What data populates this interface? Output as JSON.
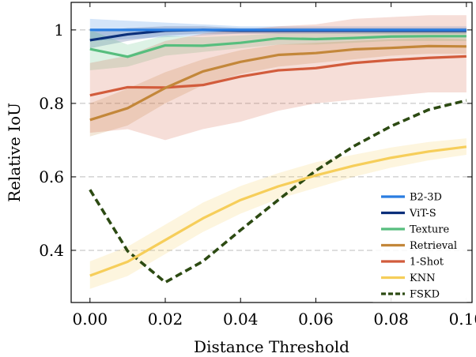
{
  "chart_data": {
    "type": "line",
    "title": "",
    "xlabel": "Distance Threshold",
    "ylabel": "Relative IoU",
    "xlim": [
      -0.005,
      0.1015
    ],
    "ylim": [
      0.258,
      1.075
    ],
    "xticks": [
      0,
      0.02,
      0.04,
      0.06,
      0.08,
      0.1
    ],
    "xtick_labels": [
      "0.00",
      "0.02",
      "0.04",
      "0.06",
      "0.08",
      "0.10"
    ],
    "yticks": [
      0.4,
      0.6,
      0.8,
      1.0
    ],
    "ytick_labels": [
      "0.4",
      "0.6",
      "0.8",
      "1"
    ],
    "grid": "horizontal dashed",
    "legend_position": "lower-right",
    "x": [
      0,
      0.01,
      0.02,
      0.03,
      0.04,
      0.05,
      0.06,
      0.07,
      0.08,
      0.09,
      0.1
    ],
    "series": [
      {
        "name": "B2-3D",
        "color": "#2a7de1",
        "dashed": false,
        "values": [
          1.0,
          1.0,
          1.0,
          1.0,
          1.0,
          1.0,
          1.0,
          1.0,
          1.0,
          1.0,
          1.0
        ],
        "band_low": [
          0.97,
          0.975,
          0.98,
          0.985,
          0.99,
          0.99,
          0.99,
          0.99,
          0.99,
          0.99,
          0.99
        ],
        "band_high": [
          1.03,
          1.025,
          1.02,
          1.015,
          1.01,
          1.01,
          1.01,
          1.01,
          1.01,
          1.01,
          1.01
        ]
      },
      {
        "name": "ViT-S",
        "color": "#0b2f7a",
        "dashed": false,
        "values": [
          0.972,
          0.988,
          0.998,
          1.0,
          0.998,
          0.998,
          0.998,
          0.998,
          0.998,
          0.998,
          0.998
        ],
        "band_low": [
          0.95,
          0.97,
          0.985,
          0.99,
          0.99,
          0.99,
          0.99,
          0.99,
          0.99,
          0.99,
          0.99
        ],
        "band_high": [
          0.995,
          1.005,
          1.01,
          1.01,
          1.005,
          1.005,
          1.005,
          1.005,
          1.005,
          1.005,
          1.005
        ]
      },
      {
        "name": "Texture",
        "color": "#57be7e",
        "dashed": false,
        "values": [
          0.948,
          0.927,
          0.958,
          0.957,
          0.965,
          0.977,
          0.975,
          0.978,
          0.982,
          0.983,
          0.983
        ],
        "band_low": [
          0.89,
          0.9,
          0.93,
          0.94,
          0.95,
          0.96,
          0.96,
          0.965,
          0.97,
          0.97,
          0.97
        ],
        "band_high": [
          1.0,
          0.96,
          0.985,
          0.98,
          0.985,
          0.99,
          0.99,
          0.992,
          0.995,
          0.995,
          0.995
        ]
      },
      {
        "name": "Retrieval",
        "color": "#c3873a",
        "dashed": false,
        "values": [
          0.755,
          0.787,
          0.842,
          0.887,
          0.913,
          0.932,
          0.937,
          0.947,
          0.951,
          0.956,
          0.955
        ],
        "band_low": [
          0.71,
          0.74,
          0.8,
          0.85,
          0.88,
          0.9,
          0.91,
          0.92,
          0.93,
          0.935,
          0.935
        ],
        "band_high": [
          0.8,
          0.84,
          0.885,
          0.92,
          0.945,
          0.96,
          0.965,
          0.97,
          0.975,
          0.978,
          0.975
        ]
      },
      {
        "name": "1-Shot",
        "color": "#d25c3c",
        "dashed": false,
        "values": [
          0.822,
          0.844,
          0.843,
          0.85,
          0.873,
          0.89,
          0.896,
          0.91,
          0.918,
          0.924,
          0.928
        ],
        "band_low": [
          0.72,
          0.73,
          0.7,
          0.73,
          0.75,
          0.78,
          0.8,
          0.81,
          0.82,
          0.83,
          0.83
        ],
        "band_high": [
          0.91,
          0.93,
          0.97,
          0.99,
          1.0,
          1.01,
          1.015,
          1.03,
          1.035,
          1.04,
          1.04
        ]
      },
      {
        "name": "KNN",
        "color": "#f6ce5a",
        "dashed": false,
        "values": [
          0.331,
          0.369,
          0.428,
          0.487,
          0.537,
          0.574,
          0.604,
          0.63,
          0.652,
          0.669,
          0.682
        ],
        "band_low": [
          0.295,
          0.33,
          0.39,
          0.45,
          0.5,
          0.54,
          0.57,
          0.6,
          0.625,
          0.645,
          0.66
        ],
        "band_high": [
          0.37,
          0.41,
          0.47,
          0.53,
          0.575,
          0.61,
          0.64,
          0.66,
          0.68,
          0.695,
          0.705
        ]
      },
      {
        "name": "FSKD",
        "color": "#2c4a12",
        "dashed": true,
        "values": [
          0.565,
          0.398,
          0.313,
          0.37,
          0.455,
          0.537,
          0.617,
          0.683,
          0.738,
          0.783,
          0.808
        ]
      }
    ]
  }
}
